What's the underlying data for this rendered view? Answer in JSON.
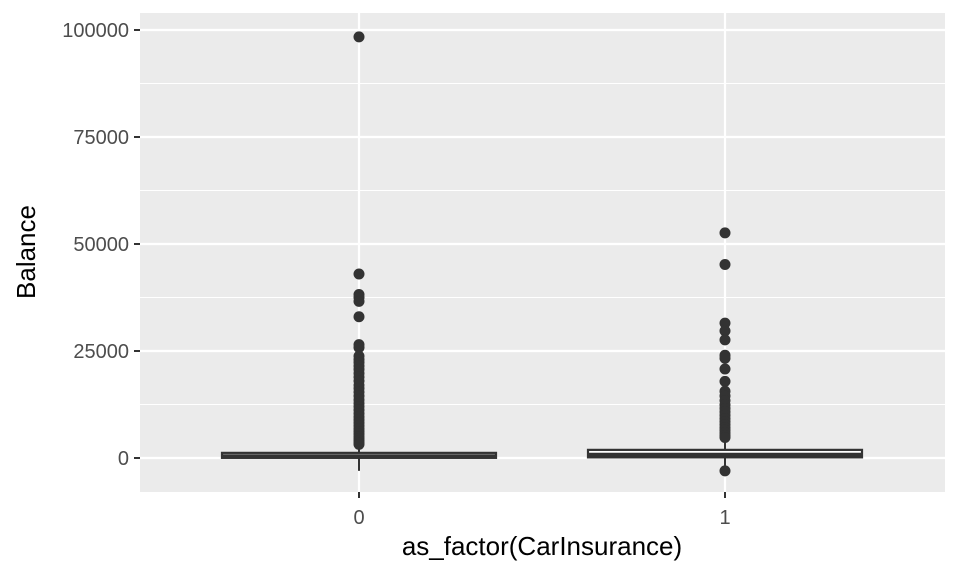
{
  "chart_data": {
    "type": "boxplot",
    "xlabel": "as_factor(CarInsurance)",
    "ylabel": "Balance",
    "categories": [
      "0",
      "1"
    ],
    "ylim": [
      -8000,
      103000
    ],
    "yticks": [
      0,
      25000,
      50000,
      75000,
      100000
    ],
    "yticklabels": [
      "0",
      "25000",
      "50000",
      "75000",
      "100000"
    ],
    "grid": true,
    "legend": "none",
    "boxes": [
      {
        "category": "0",
        "q1": 30,
        "median": 400,
        "q3": 1200,
        "whisker_low": -3000,
        "whisker_high": 3000,
        "outliers": [
          98400,
          43000,
          38200,
          37500,
          36600,
          33000,
          26500,
          25800,
          23800,
          23000,
          22300,
          21500,
          20700,
          19800,
          18900,
          18000,
          17100,
          16300,
          15400,
          14500,
          13600,
          12800,
          12000,
          11200,
          10400,
          9600,
          8900,
          8200,
          7500,
          6800,
          6200,
          5600,
          5000,
          4500,
          4000,
          3500,
          3200
        ]
      },
      {
        "category": "1",
        "q1": 150,
        "median": 750,
        "q3": 1900,
        "whisker_low": -2000,
        "whisker_high": 4500,
        "outliers": [
          52600,
          45200,
          31500,
          29700,
          27600,
          24000,
          23300,
          20800,
          17900,
          15600,
          14500,
          13400,
          12400,
          11600,
          10800,
          10000,
          9200,
          8500,
          7800,
          7100,
          6500,
          5900,
          5300,
          4800,
          -3000
        ]
      }
    ],
    "colors": {
      "panel_background": "#ebebeb",
      "grid_major": "#ffffff",
      "box_outline": "#333333",
      "box_fill": "#ffffff",
      "points": "#333333",
      "tick_text": "#4d4d4d"
    }
  }
}
